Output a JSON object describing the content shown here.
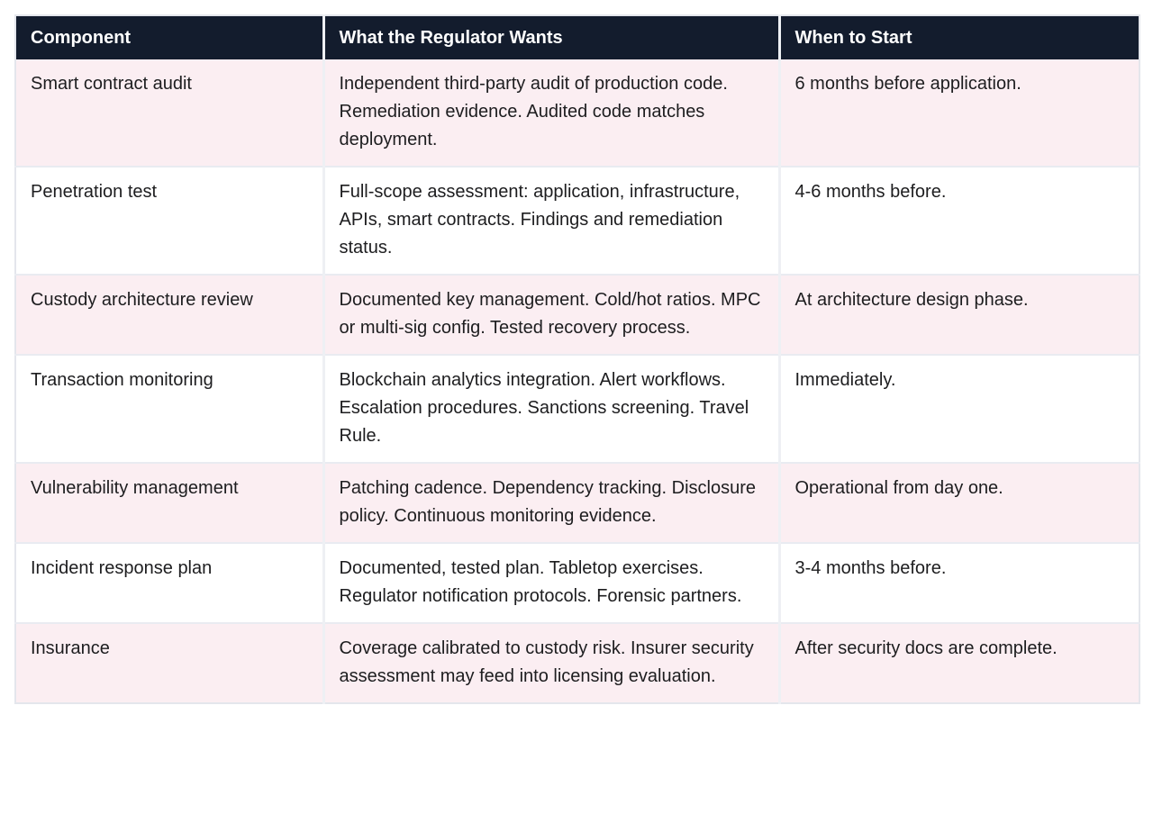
{
  "table": {
    "header": {
      "component": "Component",
      "wants": "What the Regulator Wants",
      "start": "When to Start"
    },
    "rows": [
      {
        "component": "Smart contract audit",
        "wants": "Independent third-party audit of production code. Remediation evidence. Audited code matches deployment.",
        "start": "6 months before application."
      },
      {
        "component": "Penetration test",
        "wants": "Full-scope assessment: application, infrastructure, APIs, smart contracts. Findings and remediation status.",
        "start": "4-6 months before."
      },
      {
        "component": "Custody architecture review",
        "wants": "Documented key management. Cold/hot ratios. MPC or multi-sig config. Tested recovery process.",
        "start": "At architecture design phase."
      },
      {
        "component": "Transaction monitoring",
        "wants": "Blockchain analytics integration. Alert workflows. Escalation procedures. Sanctions screening. Travel Rule.",
        "start": "Immediately."
      },
      {
        "component": "Vulnerability management",
        "wants": "Patching cadence. Dependency tracking. Disclosure policy. Continuous monitoring evidence.",
        "start": "Operational from day one."
      },
      {
        "component": "Incident response plan",
        "wants": "Documented, tested plan. Tabletop exercises. Regulator notification protocols. Forensic partners.",
        "start": "3-4 months before."
      },
      {
        "component": "Insurance",
        "wants": "Coverage calibrated to custody risk. Insurer security assessment may feed into licensing evaluation.",
        "start": "After security docs are complete."
      }
    ],
    "colors": {
      "header_bg": "#131c2d",
      "header_text": "#ffffff",
      "stripe_row_bg": "#fbeef2",
      "plain_row_bg": "#ffffff",
      "body_text": "#1d1d1f",
      "border": "#e9ebf1"
    }
  }
}
